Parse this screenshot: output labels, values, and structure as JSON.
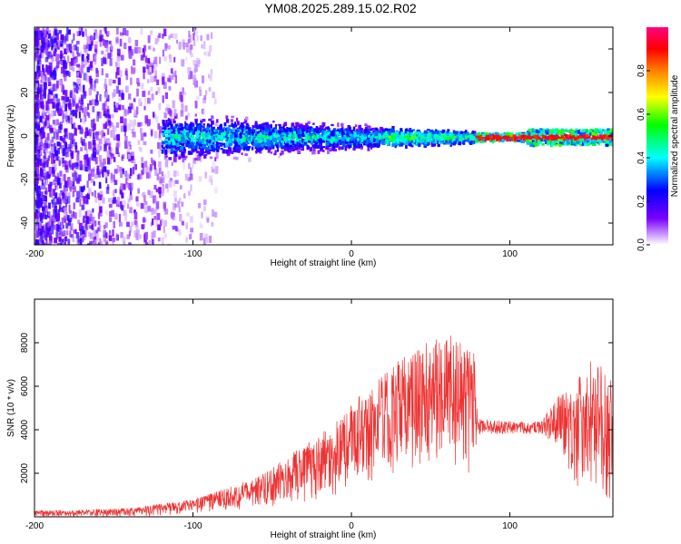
{
  "title": "YM08.2025.289.15.02.R02",
  "chart_data": [
    {
      "type": "heatmap",
      "name": "spectrogram",
      "xlabel": "Height of straight line (km)",
      "ylabel": "Frequency (Hz)",
      "xlim": [
        -200,
        165
      ],
      "ylim": [
        -50,
        50
      ],
      "xticks": [
        -200,
        -100,
        0,
        100
      ],
      "yticks": [
        -40,
        -20,
        0,
        20,
        40
      ],
      "grid": false,
      "colorbar": {
        "label": "Normalized spectral amplitude",
        "range": [
          0,
          1
        ],
        "ticks": [
          0.0,
          0.2,
          0.4,
          0.6,
          0.8
        ],
        "tick_labels": [
          "0.0",
          "0.2",
          "0.4",
          "0.6",
          "0.8"
        ],
        "colors": [
          "#ffffff",
          "#7b00ff",
          "#0000ff",
          "#00ffff",
          "#00ff00",
          "#ffff00",
          "#ff8000",
          "#ff0000",
          "#ff0080"
        ]
      },
      "regions": [
        {
          "x_range": [
            -200,
            -120
          ],
          "description": "broadband noise",
          "y_range": [
            -50,
            50
          ],
          "amplitude": 0.15
        },
        {
          "x_range": [
            -120,
            78
          ],
          "description": "signal band",
          "y_range": [
            -6,
            6
          ],
          "amplitude": 0.45
        },
        {
          "x_range": [
            78,
            165
          ],
          "description": "narrow carrier",
          "y_range": [
            -3,
            3
          ],
          "amplitude": 0.85
        }
      ]
    },
    {
      "type": "line",
      "name": "snr",
      "xlabel": "Height of straight line (km)",
      "ylabel": "SNR (10 * v/v)",
      "xlim": [
        -200,
        165
      ],
      "ylim": [
        0,
        10000
      ],
      "xticks": [
        -200,
        -100,
        0,
        100
      ],
      "yticks": [
        2000,
        4000,
        6000,
        8000
      ],
      "grid": false,
      "series": [
        {
          "name": "SNR",
          "color": "#ee3333",
          "x": [
            -200,
            -180,
            -160,
            -140,
            -120,
            -100,
            -80,
            -60,
            -40,
            -20,
            0,
            20,
            40,
            50,
            60,
            70,
            78,
            80,
            100,
            120,
            130,
            140,
            150,
            160,
            165
          ],
          "upper": [
            300,
            300,
            350,
            400,
            600,
            800,
            1300,
            1800,
            2800,
            3800,
            5200,
            6500,
            8000,
            8000,
            8500,
            8000,
            7500,
            4500,
            4400,
            4400,
            5500,
            6000,
            7200,
            7000,
            6500
          ],
          "lower": [
            0,
            0,
            0,
            0,
            50,
            150,
            250,
            350,
            500,
            700,
            1000,
            1500,
            2000,
            2500,
            2500,
            1800,
            1500,
            3800,
            3800,
            3800,
            3000,
            1500,
            800,
            600,
            500
          ]
        }
      ]
    }
  ]
}
